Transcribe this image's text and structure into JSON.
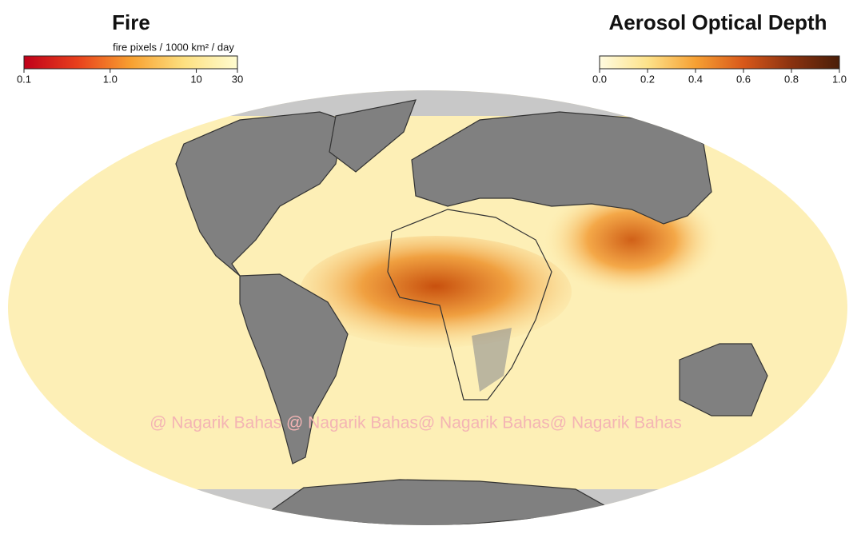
{
  "fire_legend": {
    "title": "Fire",
    "subtitle": "fire pixels / 1000 km² / day",
    "scale": "log",
    "colors": [
      "#c0001a",
      "#e8401c",
      "#f8a030",
      "#fde080",
      "#fffcd0"
    ],
    "ticks": [
      0.1,
      {
        "value": 1,
        "label": "1.0"
      },
      10,
      30
    ]
  },
  "aod_legend": {
    "title": "Aerosol Optical Depth",
    "scale": "linear",
    "colors": [
      "#fffbe0",
      "#fde28a",
      "#f6a033",
      "#d8581a",
      "#8a3210",
      "#4a1e08"
    ],
    "ticks": [
      {
        "value": 0,
        "label": "0.0"
      },
      0.2,
      0.4,
      0.6,
      0.8,
      {
        "value": 1,
        "label": "1.0"
      }
    ]
  },
  "watermark": "@ Nagarik Bahas @ Nagarik Bahas@ Nagarik Bahas@ Nagarik Bahas"
}
